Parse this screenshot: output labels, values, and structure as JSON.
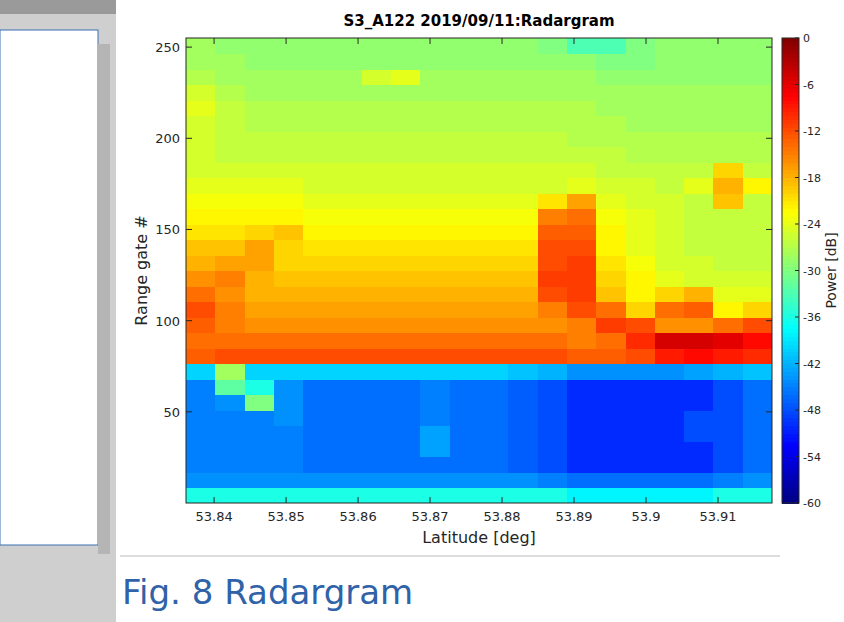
{
  "chart_data": {
    "type": "heatmap",
    "title": "S3_A122 2019/09/11:Radargram",
    "caption": "Fig. 8 Radargram",
    "x_label": "Latitude [deg]",
    "y_label": "Range gate #",
    "xlim": [
      53.8361,
      53.9175
    ],
    "ylim": [
      0,
      255
    ],
    "xticks": [
      53.84,
      53.85,
      53.86,
      53.87,
      53.88,
      53.89,
      53.9,
      53.91
    ],
    "yticks": [
      50,
      100,
      150,
      200,
      250
    ],
    "zlabel": "Power [dB]",
    "zlim": [
      -60,
      0
    ],
    "zticks": [
      0,
      -6,
      -12,
      -18,
      -24,
      -30,
      -36,
      -42,
      -48,
      -54,
      -60
    ],
    "z": [
      [
        -36,
        -36,
        -36,
        -36,
        -36,
        -36,
        -36,
        -36,
        -36,
        -36,
        -36,
        -36,
        -36,
        -38,
        -38,
        -38,
        -38,
        -38,
        -36,
        -36
      ],
      [
        -44,
        -44,
        -44,
        -44,
        -44,
        -44,
        -44,
        -44,
        -44,
        -44,
        -44,
        -44,
        -45,
        -46,
        -46,
        -46,
        -46,
        -46,
        -45,
        -44
      ],
      [
        -45,
        -45,
        -45,
        -45,
        -46,
        -46,
        -46,
        -46,
        -46,
        -46,
        -46,
        -47,
        -48,
        -50,
        -50,
        -50,
        -50,
        -50,
        -48,
        -46
      ],
      [
        -45,
        -45,
        -45,
        -45,
        -46,
        -46,
        -46,
        -46,
        -43,
        -46,
        -46,
        -47,
        -48,
        -50,
        -50,
        -50,
        -50,
        -50,
        -48,
        -46
      ],
      [
        -45,
        -45,
        -45,
        -45,
        -46,
        -46,
        -46,
        -46,
        -43,
        -46,
        -46,
        -47,
        -48,
        -50,
        -50,
        -50,
        -50,
        -48,
        -48,
        -46
      ],
      [
        -45,
        -45,
        -45,
        -44,
        -46,
        -46,
        -46,
        -46,
        -45,
        -46,
        -46,
        -47,
        -48,
        -50,
        -50,
        -50,
        -50,
        -48,
        -48,
        -46
      ],
      [
        -45,
        -44,
        -30,
        -44,
        -46,
        -46,
        -46,
        -46,
        -45,
        -46,
        -46,
        -47,
        -48,
        -50,
        -50,
        -50,
        -50,
        -50,
        -48,
        -46
      ],
      [
        -45,
        -32,
        -36,
        -44,
        -46,
        -46,
        -46,
        -46,
        -45,
        -46,
        -46,
        -47,
        -48,
        -50,
        -50,
        -50,
        -50,
        -50,
        -48,
        -46
      ],
      [
        -40,
        -28,
        -40,
        -40,
        -40,
        -40,
        -40,
        -40,
        -40,
        -40,
        -40,
        -41,
        -42,
        -44,
        -44,
        -44,
        -44,
        -43,
        -42,
        -41
      ],
      [
        -13,
        -12,
        -12,
        -12,
        -12,
        -12,
        -12,
        -12,
        -12,
        -12,
        -12,
        -12,
        -12,
        -13,
        -13,
        -12,
        -9,
        -8,
        -9,
        -10
      ],
      [
        -14,
        -14,
        -14,
        -14,
        -14,
        -14,
        -14,
        -14,
        -14,
        -14,
        -14,
        -14,
        -14,
        -15,
        -14,
        -10,
        -5,
        -5,
        -6,
        -8
      ],
      [
        -13,
        -15,
        -16,
        -16,
        -16,
        -16,
        -16,
        -16,
        -16,
        -16,
        -16,
        -16,
        -16,
        -15,
        -11,
        -12,
        -16,
        -16,
        -14,
        -12
      ],
      [
        -12,
        -15,
        -17,
        -17,
        -17,
        -17,
        -17,
        -17,
        -17,
        -17,
        -17,
        -17,
        -15,
        -12,
        -14,
        -20,
        -14,
        -13,
        -22,
        -20
      ],
      [
        -14,
        -16,
        -18,
        -18,
        -18,
        -18,
        -18,
        -18,
        -18,
        -18,
        -18,
        -18,
        -12,
        -11,
        -19,
        -22,
        -20,
        -18,
        -24,
        -24
      ],
      [
        -16,
        -15,
        -18,
        -19,
        -19,
        -19,
        -19,
        -19,
        -19,
        -19,
        -19,
        -19,
        -11,
        -11,
        -20,
        -22,
        -24,
        -25,
        -25,
        -25
      ],
      [
        -18,
        -17,
        -17,
        -20,
        -20,
        -20,
        -20,
        -20,
        -20,
        -20,
        -20,
        -20,
        -12,
        -11,
        -21,
        -23,
        -25,
        -25,
        -26,
        -26
      ],
      [
        -19,
        -19,
        -17,
        -20,
        -21,
        -21,
        -21,
        -21,
        -21,
        -21,
        -21,
        -21,
        -12,
        -12,
        -22,
        -24,
        -25,
        -26,
        -26,
        -26
      ],
      [
        -21,
        -21,
        -20,
        -19,
        -22,
        -22,
        -22,
        -22,
        -22,
        -22,
        -22,
        -22,
        -13,
        -13,
        -22,
        -24,
        -25,
        -26,
        -26,
        -26
      ],
      [
        -22,
        -22,
        -22,
        -22,
        -23,
        -23,
        -23,
        -23,
        -23,
        -23,
        -23,
        -23,
        -15,
        -14,
        -23,
        -24,
        -25,
        -26,
        -26,
        -26
      ],
      [
        -23,
        -23,
        -23,
        -23,
        -24,
        -24,
        -24,
        -24,
        -24,
        -24,
        -24,
        -24,
        -21,
        -17,
        -24,
        -25,
        -25,
        -26,
        -19,
        -26
      ],
      [
        -24,
        -24,
        -24,
        -24,
        -25,
        -25,
        -25,
        -25,
        -25,
        -25,
        -25,
        -25,
        -25,
        -24,
        -25,
        -25,
        -26,
        -24,
        -18,
        -22
      ],
      [
        -25,
        -25,
        -25,
        -25,
        -25,
        -25,
        -25,
        -25,
        -25,
        -25,
        -25,
        -25,
        -25,
        -25,
        -26,
        -26,
        -26,
        -26,
        -20,
        -26
      ],
      [
        -25,
        -26,
        -26,
        -26,
        -26,
        -26,
        -26,
        -26,
        -26,
        -26,
        -26,
        -26,
        -26,
        -26,
        -26,
        -27,
        -27,
        -27,
        -27,
        -27
      ],
      [
        -25,
        -26,
        -26,
        -26,
        -26,
        -26,
        -26,
        -26,
        -26,
        -26,
        -26,
        -26,
        -26,
        -27,
        -27,
        -27,
        -27,
        -27,
        -27,
        -27
      ],
      [
        -25,
        -26,
        -27,
        -27,
        -27,
        -27,
        -27,
        -27,
        -27,
        -27,
        -27,
        -27,
        -27,
        -27,
        -27,
        -28,
        -28,
        -28,
        -28,
        -28
      ],
      [
        -24,
        -26,
        -27,
        -27,
        -27,
        -27,
        -27,
        -27,
        -27,
        -27,
        -27,
        -27,
        -27,
        -27,
        -28,
        -28,
        -28,
        -28,
        -28,
        -28
      ],
      [
        -25,
        -27,
        -28,
        -28,
        -28,
        -28,
        -28,
        -28,
        -28,
        -28,
        -28,
        -28,
        -28,
        -28,
        -28,
        -28,
        -28,
        -28,
        -28,
        -28
      ],
      [
        -27,
        -28,
        -28,
        -28,
        -28,
        -28,
        -25,
        -24,
        -28,
        -28,
        -28,
        -28,
        -28,
        -28,
        -29,
        -29,
        -29,
        -29,
        -29,
        -29
      ],
      [
        -28,
        -28,
        -29,
        -29,
        -29,
        -29,
        -29,
        -29,
        -29,
        -29,
        -29,
        -29,
        -29,
        -29,
        -30,
        -30,
        -29,
        -29,
        -29,
        -29
      ],
      [
        -28,
        -29,
        -29,
        -29,
        -29,
        -29,
        -29,
        -29,
        -29,
        -29,
        -29,
        -29,
        -30,
        -33,
        -33,
        -30,
        -29,
        -29,
        -29,
        -29
      ]
    ]
  }
}
